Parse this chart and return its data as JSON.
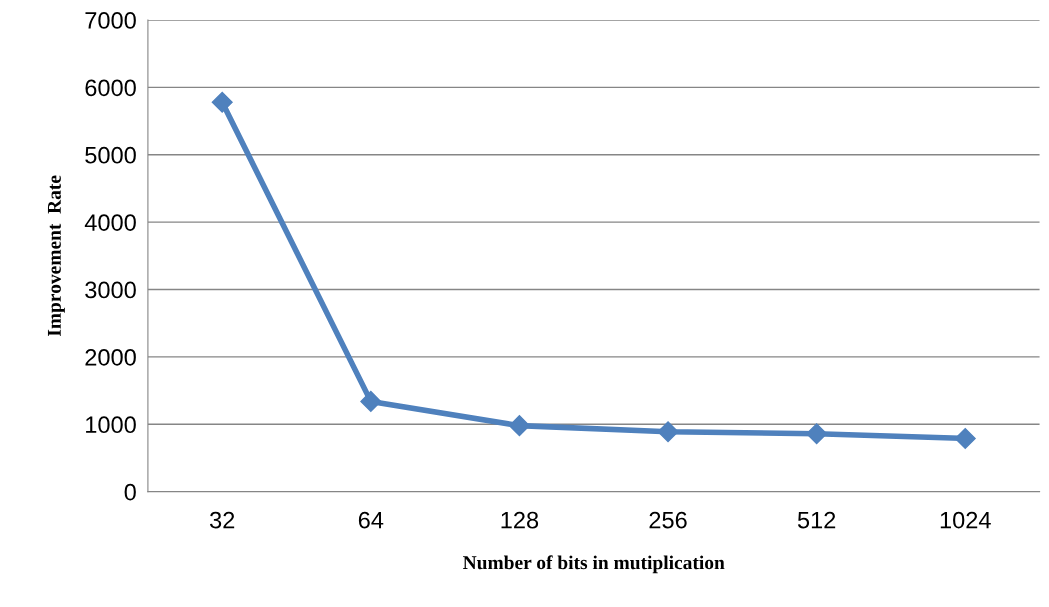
{
  "chart_data": {
    "type": "line",
    "xlabel": "Number of bits in mutiplication",
    "ylabel": "Improvement  Rate",
    "categories": [
      "32",
      "64",
      "128",
      "256",
      "512",
      "1024"
    ],
    "series": [
      {
        "color": "#4f81bd",
        "values": [
          5780,
          1340,
          980,
          890,
          860,
          790
        ]
      }
    ],
    "ylim": [
      0,
      7000
    ],
    "yticks": [
      0,
      1000,
      2000,
      3000,
      4000,
      5000,
      6000,
      7000
    ],
    "grid": "y",
    "marker": "diamond",
    "line_style": "solid",
    "legend": false
  }
}
